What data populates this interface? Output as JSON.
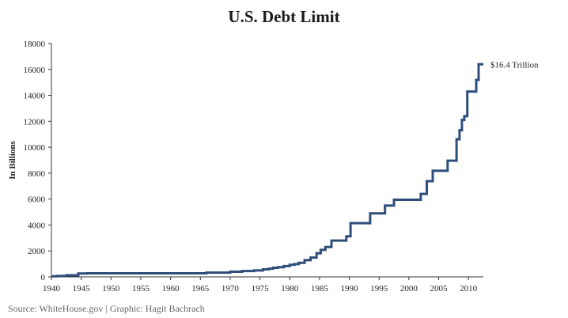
{
  "chart_data": {
    "type": "line",
    "title": "U.S. Debt Limit",
    "ylabel": "In Billions",
    "xlabel": "",
    "xlim": [
      1940,
      2012.5
    ],
    "ylim": [
      0,
      18000
    ],
    "x_ticks": [
      1940,
      1945,
      1950,
      1955,
      1960,
      1965,
      1970,
      1975,
      1980,
      1985,
      1990,
      1995,
      2000,
      2005,
      2010
    ],
    "y_ticks": [
      0,
      2000,
      4000,
      6000,
      8000,
      10000,
      12000,
      14000,
      16000,
      18000
    ],
    "grid": false,
    "legend": "none",
    "line_color": "#2e4d79",
    "step": true,
    "series": [
      {
        "x": [
          1940,
          1941,
          1942.5,
          1944.5,
          1946,
          1966,
          1970,
          1972,
          1974,
          1975.5,
          1976.5,
          1977.2,
          1978,
          1979,
          1980,
          1980.8,
          1981.5,
          1982.5,
          1983.5,
          1984.5,
          1985.2,
          1986,
          1987,
          1988.5,
          1989.5,
          1990.2,
          1992.8,
          1993.5,
          1996,
          1997.5,
          2002,
          2003,
          2004,
          2006.5,
          2008,
          2008.5,
          2008.9,
          2009.3,
          2009.8,
          2010.2,
          2011.3,
          2011.7,
          2012.5
        ],
        "y": [
          45,
          65,
          125,
          260,
          275,
          330,
          395,
          450,
          495,
          577,
          636,
          700,
          752,
          830,
          925,
          985,
          1079,
          1290,
          1490,
          1824,
          2079,
          2300,
          2800,
          2800,
          3123,
          4145,
          4145,
          4900,
          5500,
          5950,
          6400,
          7384,
          8184,
          8965,
          10615,
          11315,
          12104,
          12394,
          14294,
          14294,
          15194,
          16394,
          16394
        ]
      }
    ],
    "annotations": [
      {
        "text": "$16.4 Trillion",
        "x": 2012.5,
        "y": 16394
      }
    ]
  },
  "source": "Source: WhiteHouse.gov | Graphic: Hagit Bachrach"
}
